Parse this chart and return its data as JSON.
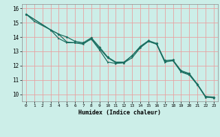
{
  "xlabel": "Humidex (Indice chaleur)",
  "background_color": "#cceee8",
  "grid_color": "#e8a0a0",
  "line_color": "#1a6e60",
  "xlim": [
    -0.5,
    23.5
  ],
  "ylim": [
    9.5,
    16.3
  ],
  "yticks": [
    10,
    11,
    12,
    13,
    14,
    15,
    16
  ],
  "xticks": [
    0,
    1,
    2,
    3,
    4,
    5,
    6,
    7,
    8,
    9,
    10,
    11,
    12,
    13,
    14,
    15,
    16,
    17,
    18,
    19,
    20,
    21,
    22,
    23
  ],
  "series1_x": [
    0,
    1,
    3,
    4,
    5,
    6,
    7,
    8,
    9,
    10,
    11,
    12,
    13,
    14,
    15,
    16,
    17,
    18,
    19,
    20,
    21,
    22,
    23
  ],
  "series1_y": [
    15.6,
    15.1,
    14.5,
    13.9,
    13.6,
    13.6,
    13.55,
    13.85,
    13.1,
    12.25,
    12.15,
    12.2,
    12.55,
    13.25,
    13.7,
    13.5,
    12.25,
    12.35,
    11.55,
    11.35,
    10.65,
    9.8,
    9.75
  ],
  "series2_x": [
    0,
    3,
    4,
    5,
    6,
    7,
    8,
    9,
    10,
    11,
    12,
    13,
    14,
    15,
    16,
    17,
    18,
    19,
    20,
    21,
    22,
    23
  ],
  "series2_y": [
    15.6,
    14.5,
    14.2,
    13.65,
    13.6,
    13.5,
    13.9,
    13.2,
    12.55,
    12.2,
    12.2,
    12.7,
    13.3,
    13.7,
    13.5,
    12.3,
    12.35,
    11.6,
    11.4,
    10.7,
    9.8,
    9.75
  ],
  "series3_x": [
    0,
    3,
    4,
    5,
    6,
    7,
    8,
    9,
    10,
    11,
    12,
    13,
    14,
    15,
    16,
    17,
    18,
    19,
    20,
    21,
    22,
    23
  ],
  "series3_y": [
    15.6,
    14.5,
    14.2,
    14.0,
    13.7,
    13.6,
    13.95,
    13.3,
    12.6,
    12.25,
    12.25,
    12.7,
    13.35,
    13.75,
    13.55,
    12.35,
    12.4,
    11.65,
    11.45,
    10.7,
    9.85,
    9.8
  ]
}
